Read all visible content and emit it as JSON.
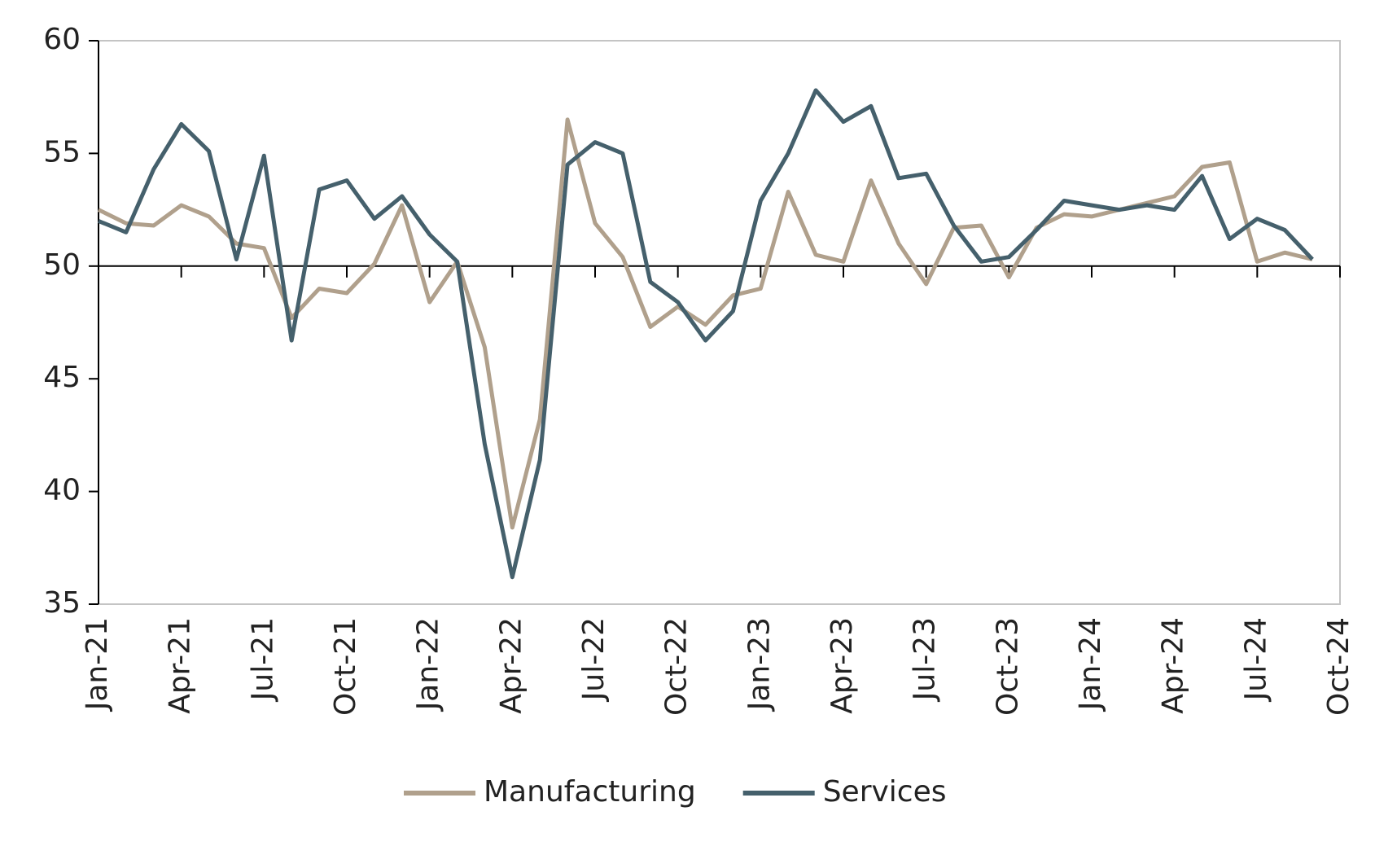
{
  "chart_data": {
    "type": "line",
    "categories": [
      "Jan-21",
      null,
      null,
      "Apr-21",
      null,
      null,
      "Jul-21",
      null,
      null,
      "Oct-21",
      null,
      null,
      "Jan-22",
      null,
      null,
      "Apr-22",
      null,
      null,
      "Jul-22",
      null,
      null,
      "Oct-22",
      null,
      null,
      "Jan-23",
      null,
      null,
      "Apr-23",
      null,
      null,
      "Jul-23",
      null,
      null,
      "Oct-23",
      null,
      null,
      "Jan-24",
      null,
      null,
      "Apr-24",
      null,
      null,
      "Jul-24",
      null,
      null,
      "Oct-24"
    ],
    "series": [
      {
        "name": "Manufacturing",
        "color": "#b0a08c",
        "values": [
          52.5,
          51.9,
          51.8,
          52.7,
          52.2,
          51.0,
          50.8,
          47.7,
          49.0,
          48.8,
          50.1,
          52.7,
          48.4,
          50.2,
          46.4,
          38.4,
          43.2,
          56.5,
          51.9,
          50.4,
          47.3,
          48.2,
          47.4,
          48.7,
          49.0,
          53.3,
          50.5,
          50.2,
          53.8,
          51.0,
          49.2,
          51.7,
          51.8,
          49.5,
          51.7,
          52.3,
          52.2,
          52.5,
          52.8,
          53.1,
          54.4,
          54.6,
          50.2,
          50.6,
          50.3,
          null
        ]
      },
      {
        "name": "Services",
        "color": "#45606c",
        "values": [
          52.0,
          51.5,
          54.3,
          56.3,
          55.1,
          50.3,
          54.9,
          46.7,
          53.4,
          53.8,
          52.1,
          53.1,
          51.4,
          50.2,
          42.1,
          36.2,
          41.4,
          54.5,
          55.5,
          55.0,
          49.3,
          48.4,
          46.7,
          48.0,
          52.9,
          55.0,
          57.8,
          56.4,
          57.1,
          53.9,
          54.1,
          51.8,
          50.2,
          50.4,
          51.6,
          52.9,
          52.7,
          52.5,
          52.7,
          52.5,
          54.0,
          51.2,
          52.1,
          51.6,
          50.3,
          null
        ]
      }
    ],
    "ylim": [
      35,
      60
    ],
    "yticks": [
      35,
      40,
      45,
      50,
      55,
      60
    ],
    "reference_line": 50,
    "legend": "bottom"
  }
}
